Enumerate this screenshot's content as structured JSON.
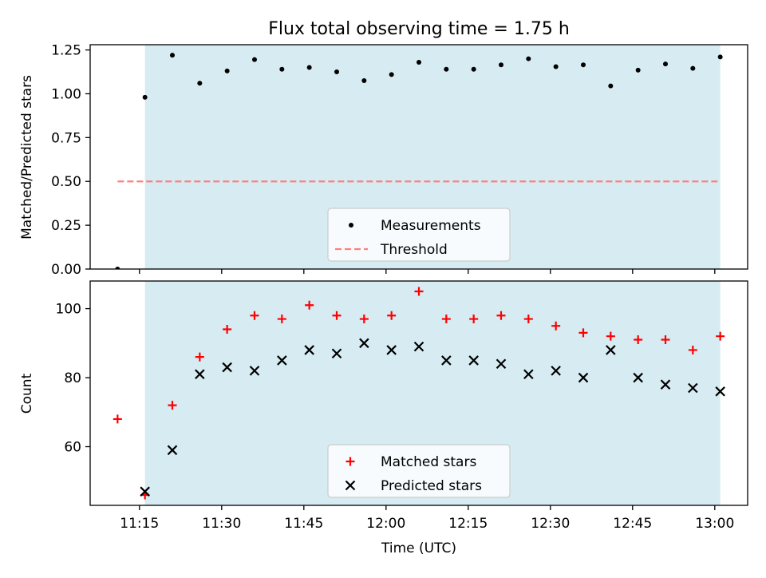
{
  "title": "Flux total observing time = 1.75 h",
  "colors": {
    "span": "#add8e6",
    "measurement": "#000000",
    "threshold": "#ff7f7f",
    "matched": "#ff0000",
    "predicted": "#000000"
  },
  "chart_data": [
    {
      "type": "scatter",
      "panel": "top",
      "title": "Flux total observing time = 1.75 h",
      "xlabel": "",
      "ylabel": "Matched/Predicted stars",
      "ylim": [
        0,
        1.28
      ],
      "yticks": [
        0,
        0.25,
        0.5,
        0.75,
        1.0,
        1.25
      ],
      "ytick_labels": [
        "0.00",
        "0.25",
        "0.50",
        "0.75",
        "1.00",
        "1.25"
      ],
      "grid": false,
      "legend_position": "lower-center",
      "highlight_span_min": [
        16,
        121
      ],
      "threshold": {
        "name": "Threshold",
        "value": 0.5,
        "x_range_min": [
          11,
          121
        ]
      },
      "series": [
        {
          "name": "Measurements",
          "x_min": [
            11,
            16,
            21,
            26,
            31,
            36,
            41,
            46,
            51,
            56,
            61,
            66,
            71,
            76,
            81,
            86,
            91,
            96,
            101,
            106,
            111,
            116,
            121
          ],
          "values": [
            0.0,
            0.98,
            1.22,
            1.06,
            1.13,
            1.195,
            1.14,
            1.15,
            1.125,
            1.075,
            1.11,
            1.18,
            1.14,
            1.14,
            1.165,
            1.2,
            1.155,
            1.165,
            1.045,
            1.135,
            1.17,
            1.145,
            1.21
          ]
        }
      ]
    },
    {
      "type": "scatter",
      "panel": "bottom",
      "xlabel": "Time (UTC)",
      "ylabel": "Count",
      "ylim": [
        43,
        108
      ],
      "yticks": [
        60,
        80,
        100
      ],
      "ytick_labels": [
        "60",
        "80",
        "100"
      ],
      "xlim_min": [
        6,
        126
      ],
      "xticks_min": [
        15,
        30,
        45,
        60,
        75,
        90,
        105,
        120
      ],
      "xtick_labels": [
        "11:15",
        "11:30",
        "11:45",
        "12:00",
        "12:15",
        "12:30",
        "12:45",
        "13:00"
      ],
      "grid": false,
      "legend_position": "lower-center",
      "highlight_span_min": [
        16,
        121
      ],
      "series": [
        {
          "name": "Matched stars",
          "marker": "+",
          "x_min": [
            11,
            16,
            21,
            26,
            31,
            36,
            41,
            46,
            51,
            56,
            61,
            66,
            71,
            76,
            81,
            86,
            91,
            96,
            101,
            106,
            111,
            116,
            121
          ],
          "values": [
            68,
            46,
            72,
            86,
            94,
            98,
            97,
            101,
            98,
            97,
            98,
            105,
            97,
            97,
            98,
            97,
            95,
            93,
            92,
            91,
            91,
            88,
            92
          ]
        },
        {
          "name": "Predicted stars",
          "marker": "x",
          "x_min": [
            16,
            21,
            26,
            31,
            36,
            41,
            46,
            51,
            56,
            61,
            66,
            71,
            76,
            81,
            86,
            91,
            96,
            101,
            106,
            111,
            116,
            121
          ],
          "values": [
            47,
            59,
            81,
            83,
            82,
            85,
            88,
            87,
            90,
            88,
            89,
            85,
            85,
            84,
            81,
            82,
            80,
            88,
            80,
            78,
            77,
            76
          ]
        }
      ]
    }
  ]
}
